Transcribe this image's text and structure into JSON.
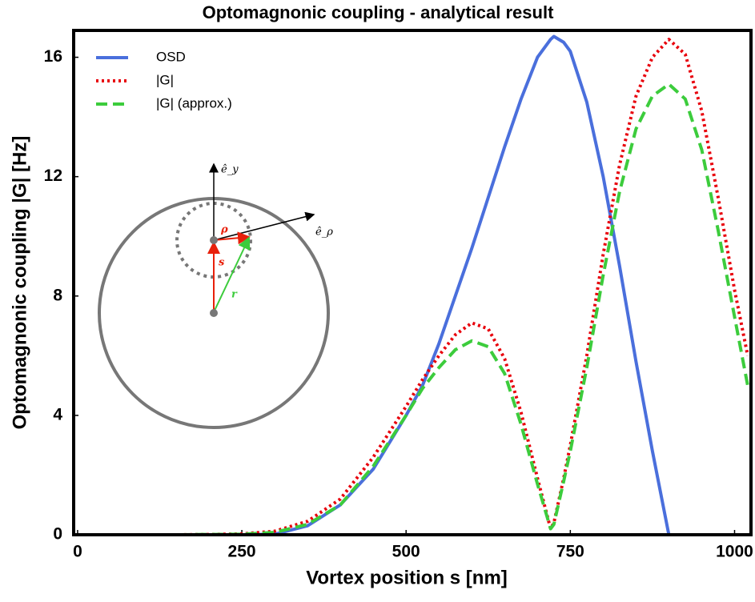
{
  "chart_data": {
    "type": "line",
    "title": "Optomagnonic coupling - analytical result",
    "x_label": "Vortex position s [nm]",
    "y_label": "Optomagnonic coupling |G| [Hz]",
    "x": [
      0,
      50,
      100,
      150,
      200,
      250,
      300,
      350,
      400,
      450,
      500,
      525,
      550,
      575,
      600,
      625,
      650,
      675,
      700,
      720,
      725,
      740,
      750,
      775,
      800,
      825,
      850,
      875,
      900,
      925,
      950,
      975,
      1000,
      1020
    ],
    "series": [
      {
        "name": "OSD",
        "color": "#4a6fdc",
        "dash": "solid",
        "values": [
          0,
          0,
          0,
          0,
          0,
          0,
          0.02,
          0.3,
          1.0,
          2.2,
          4.0,
          5.0,
          6.4,
          8.0,
          9.6,
          11.3,
          13.0,
          14.6,
          16.0,
          16.6,
          16.7,
          16.5,
          16.2,
          14.5,
          12.0,
          9.0,
          5.8,
          2.8,
          0,
          null,
          null,
          null,
          null,
          null
        ]
      },
      {
        "name": "|G|",
        "color": "#e8000b",
        "dash": "dotted",
        "values": [
          0,
          0,
          0,
          0,
          0.01,
          0.03,
          0.12,
          0.45,
          1.2,
          2.6,
          4.3,
          5.2,
          6.0,
          6.7,
          7.1,
          6.9,
          5.9,
          4.1,
          1.9,
          0.2,
          0.4,
          1.9,
          3.0,
          6.0,
          9.4,
          12.4,
          14.7,
          16.0,
          16.6,
          16.1,
          14.2,
          11.3,
          8.2,
          6.0
        ]
      },
      {
        "name": "|G| (approx.)",
        "color": "#3ccc3c",
        "dash": "dashed",
        "values": [
          0,
          0,
          0,
          0,
          0.01,
          0.02,
          0.08,
          0.35,
          1.0,
          2.3,
          4.0,
          4.9,
          5.6,
          6.2,
          6.5,
          6.3,
          5.4,
          3.7,
          1.7,
          0.2,
          0.35,
          1.8,
          2.8,
          5.6,
          8.7,
          11.5,
          13.6,
          14.7,
          15.1,
          14.6,
          12.9,
          10.2,
          7.3,
          5.0
        ]
      }
    ],
    "xlim": [
      -6,
      1025
    ],
    "ylim": [
      0,
      16.9
    ],
    "xticks": [
      0,
      250,
      500,
      750,
      1000
    ],
    "yticks": [
      0,
      4,
      8,
      12,
      16
    ],
    "grid": false,
    "legend": "upper-left",
    "annotations": [
      "ê_y",
      "ê_ρ",
      "ρ",
      "s",
      "r"
    ]
  }
}
